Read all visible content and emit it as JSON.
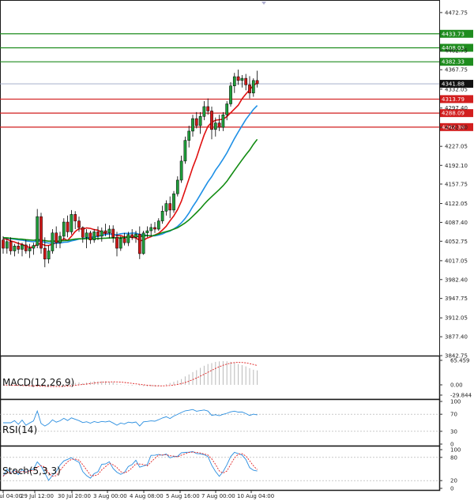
{
  "chart_data": {
    "type": "candlestick",
    "title": "",
    "y_axis": {
      "ylim": [
        3842.75,
        4490
      ],
      "ticks": [
        "4472.75",
        "4402.75",
        "4367.75",
        "4332.05",
        "4297.40",
        "4262.00",
        "4227.05",
        "4192.10",
        "4157.75",
        "4122.05",
        "4087.40",
        "4052.75",
        "4017.05",
        "3982.40",
        "3947.75",
        "3912.05",
        "3877.40",
        "3842.75"
      ]
    },
    "x_axis": {
      "tick_labels": [
        "28 Jul 04:00",
        "29 Jul 12:00",
        "30 Jul 20:00",
        "3 Aug 00:00",
        "4 Aug 08:00",
        "5 Aug 16:00",
        "7 Aug 00:00",
        "10 Aug 04:00"
      ]
    },
    "current_price": "4341.88",
    "levels": [
      {
        "value": 4433.73,
        "label": "4433.73",
        "color": "#1e8c1e"
      },
      {
        "value": 4408.03,
        "label": "4408.03",
        "color": "#1e8c1e"
      },
      {
        "value": 4382.33,
        "label": "4382.33",
        "color": "#1e8c1e"
      },
      {
        "value": 4313.79,
        "label": "4313.79",
        "color": "#d21e1e"
      },
      {
        "value": 4288.09,
        "label": "4288.09",
        "color": "#d21e1e"
      },
      {
        "value": 4262.39,
        "label": "4262.39",
        "color": "#d21e1e"
      }
    ],
    "candles": [
      [
        4055,
        4062,
        4030,
        4040
      ],
      [
        4040,
        4058,
        4030,
        4052
      ],
      [
        4052,
        4060,
        4028,
        4035
      ],
      [
        4035,
        4048,
        4025,
        4044
      ],
      [
        4044,
        4052,
        4030,
        4038
      ],
      [
        4038,
        4050,
        4025,
        4046
      ],
      [
        4046,
        4056,
        4030,
        4035
      ],
      [
        4035,
        4048,
        4022,
        4040
      ],
      [
        4040,
        4050,
        4028,
        4045
      ],
      [
        4045,
        4112,
        4040,
        4098
      ],
      [
        4098,
        4105,
        4030,
        4040
      ],
      [
        4040,
        4060,
        4005,
        4020
      ],
      [
        4020,
        4045,
        4012,
        4035
      ],
      [
        4035,
        4075,
        4030,
        4068
      ],
      [
        4068,
        4080,
        4040,
        4050
      ],
      [
        4050,
        4070,
        4040,
        4062
      ],
      [
        4062,
        4095,
        4055,
        4088
      ],
      [
        4088,
        4100,
        4060,
        4070
      ],
      [
        4070,
        4110,
        4065,
        4102
      ],
      [
        4102,
        4108,
        4075,
        4090
      ],
      [
        4090,
        4098,
        4070,
        4078
      ],
      [
        4078,
        4080,
        4050,
        4060
      ],
      [
        4060,
        4075,
        4040,
        4068
      ],
      [
        4068,
        4072,
        4048,
        4055
      ],
      [
        4055,
        4075,
        4050,
        4070
      ],
      [
        4070,
        4080,
        4055,
        4062
      ],
      [
        4062,
        4078,
        4052,
        4072
      ],
      [
        4072,
        4085,
        4062,
        4068
      ],
      [
        4068,
        4082,
        4058,
        4075
      ],
      [
        4075,
        4082,
        4050,
        4060
      ],
      [
        4060,
        4070,
        4025,
        4040
      ],
      [
        4040,
        4062,
        4035,
        4058
      ],
      [
        4058,
        4068,
        4045,
        4050
      ],
      [
        4050,
        4070,
        4044,
        4065
      ],
      [
        4065,
        4075,
        4055,
        4060
      ],
      [
        4060,
        4072,
        4050,
        4066
      ],
      [
        4066,
        4080,
        4020,
        4030
      ],
      [
        4030,
        4072,
        4028,
        4068
      ],
      [
        4068,
        4080,
        4060,
        4072
      ],
      [
        4072,
        4085,
        4062,
        4078
      ],
      [
        4078,
        4088,
        4068,
        4075
      ],
      [
        4075,
        4095,
        4072,
        4090
      ],
      [
        4090,
        4118,
        4085,
        4108
      ],
      [
        4108,
        4128,
        4100,
        4122
      ],
      [
        4122,
        4135,
        4095,
        4110
      ],
      [
        4110,
        4145,
        4105,
        4140
      ],
      [
        4140,
        4172,
        4135,
        4165
      ],
      [
        4165,
        4210,
        4160,
        4200
      ],
      [
        4200,
        4245,
        4195,
        4238
      ],
      [
        4238,
        4265,
        4225,
        4255
      ],
      [
        4255,
        4285,
        4245,
        4278
      ],
      [
        4278,
        4290,
        4260,
        4265
      ],
      [
        4265,
        4290,
        4250,
        4282
      ],
      [
        4282,
        4310,
        4275,
        4300
      ],
      [
        4300,
        4315,
        4285,
        4292
      ],
      [
        4292,
        4300,
        4240,
        4258
      ],
      [
        4258,
        4280,
        4245,
        4270
      ],
      [
        4270,
        4285,
        4255,
        4262
      ],
      [
        4262,
        4290,
        4255,
        4285
      ],
      [
        4285,
        4310,
        4275,
        4305
      ],
      [
        4305,
        4345,
        4300,
        4338
      ],
      [
        4338,
        4362,
        4325,
        4355
      ],
      [
        4355,
        4368,
        4340,
        4348
      ],
      [
        4348,
        4358,
        4335,
        4352
      ],
      [
        4352,
        4360,
        4330,
        4340
      ],
      [
        4340,
        4356,
        4315,
        4325
      ],
      [
        4325,
        4352,
        4318,
        4348
      ],
      [
        4348,
        4366,
        4335,
        4342
      ]
    ],
    "indicators": [
      "MACD(12,26,9)",
      "RSI(14)",
      "Stoch(5,3,3)"
    ],
    "macd_axis": [
      "65.459",
      "0.00",
      "-29.844"
    ],
    "rsi_axis": [
      "100",
      "70",
      "30",
      "0"
    ],
    "stoch_axis": [
      "100",
      "80",
      "20",
      "0"
    ]
  }
}
